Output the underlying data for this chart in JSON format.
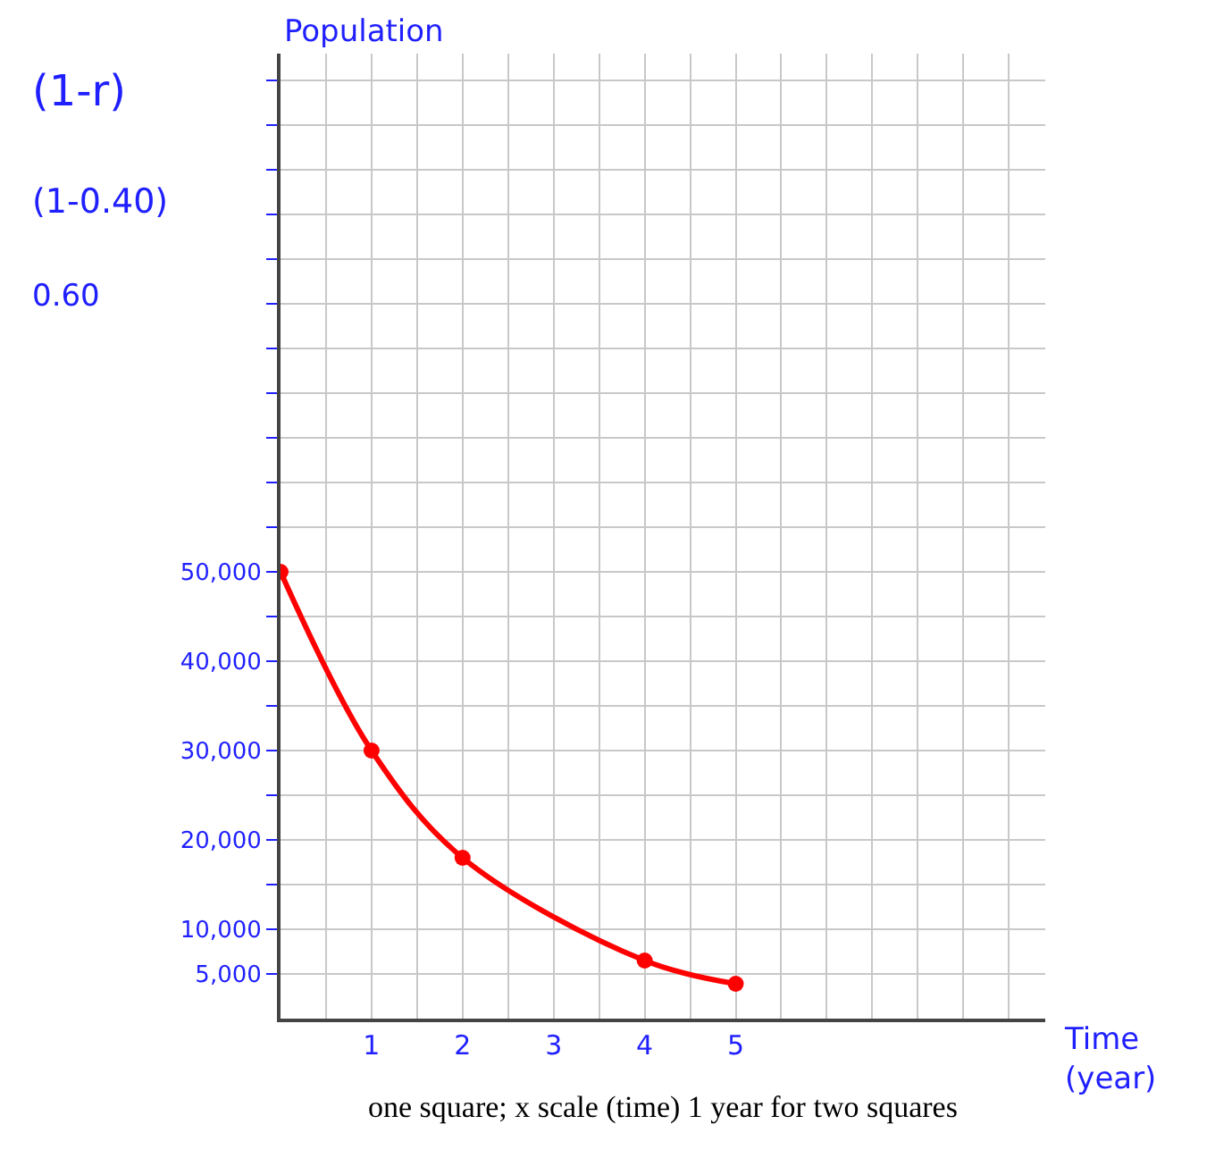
{
  "chart_data": {
    "type": "line",
    "xlabel": "Time (year)",
    "ylabel": "Population",
    "x": [
      0,
      1,
      2,
      4,
      5
    ],
    "series": [
      {
        "color": "#ff0000",
        "values": [
          50000,
          30000,
          18000,
          6500,
          3900
        ]
      }
    ],
    "xlim": [
      0,
      8.4
    ],
    "xticks": [
      {
        "value": 0.5,
        "label": null
      },
      1,
      {
        "value": 1.5,
        "label": null
      },
      2,
      {
        "value": 2.5,
        "label": null
      },
      3,
      {
        "value": 3.5,
        "label": null
      },
      4,
      {
        "value": 4.5,
        "label": null
      },
      5,
      {
        "value": 5.5,
        "label": null
      },
      {
        "value": 6,
        "label": null
      },
      {
        "value": 6.5,
        "label": null
      },
      {
        "value": 7,
        "label": null
      },
      {
        "value": 7.5,
        "label": null
      },
      {
        "value": 8,
        "label": null
      }
    ],
    "ylim": [
      0,
      108000
    ],
    "yticks": [
      {
        "value": 5000,
        "label": "5,000"
      },
      {
        "value": 10000,
        "label": "10,000"
      },
      {
        "value": 15000,
        "label": null
      },
      {
        "value": 20000,
        "label": "20,000"
      },
      {
        "value": 25000,
        "label": null
      },
      {
        "value": 30000,
        "label": "30,000"
      },
      {
        "value": 35000,
        "label": null
      },
      {
        "value": 40000,
        "label": "40,000"
      },
      {
        "value": 45000,
        "label": null
      },
      {
        "value": 50000,
        "label": "50,000"
      },
      {
        "value": 55000,
        "label": null
      },
      {
        "value": 60000,
        "label": null
      },
      {
        "value": 65000,
        "label": null
      },
      {
        "value": 70000,
        "label": null
      },
      {
        "value": 75000,
        "label": null
      },
      {
        "value": 80000,
        "label": null
      },
      {
        "value": 85000,
        "label": null
      },
      {
        "value": 90000,
        "label": null
      },
      {
        "value": 95000,
        "label": null
      },
      {
        "value": 100000,
        "label": null
      },
      {
        "value": 105000,
        "label": null
      }
    ],
    "grid": true,
    "marker": "circle",
    "line_style": "solid",
    "annotations": [
      "(1-r)",
      "(1-0.40)",
      "0.60",
      "one square; x scale (time) 1 year for two squares"
    ]
  }
}
